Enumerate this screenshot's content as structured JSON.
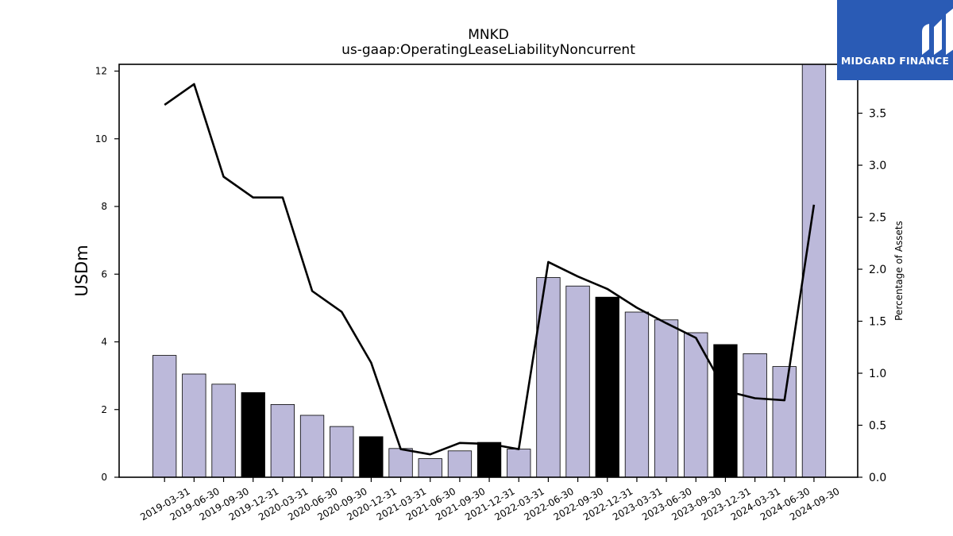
{
  "brand": {
    "name": "MIDGARD FINANCE",
    "color": "#2a5bb5"
  },
  "chart_data": {
    "type": "bar",
    "title": "MNKD",
    "subtitle": "us-gaap:OperatingLeaseLiabilityNoncurrent",
    "ylabel": "USDm",
    "y2label": "Percentage of Assets",
    "ylim": [
      0,
      12.2
    ],
    "y2lim": [
      0,
      3.97
    ],
    "yticks": [
      0,
      2,
      4,
      6,
      8,
      10,
      12
    ],
    "y2ticks": [
      "0.0",
      "0.5",
      "1.0",
      "1.5",
      "2.0",
      "2.5",
      "3.0",
      "3.5"
    ],
    "categories": [
      "2019-03-31",
      "2019-06-30",
      "2019-09-30",
      "2019-12-31",
      "2020-03-31",
      "2020-06-30",
      "2020-09-30",
      "2020-12-31",
      "2021-03-31",
      "2021-06-30",
      "2021-09-30",
      "2021-12-31",
      "2022-03-31",
      "2022-06-30",
      "2022-09-30",
      "2022-12-31",
      "2023-03-31",
      "2023-06-30",
      "2023-09-30",
      "2023-12-31",
      "2024-03-31",
      "2024-06-30",
      "2024-09-30"
    ],
    "series": [
      {
        "type": "bar",
        "axis": "left",
        "values": [
          3.6,
          3.05,
          2.75,
          2.5,
          2.15,
          1.83,
          1.5,
          1.2,
          0.85,
          0.55,
          0.78,
          1.03,
          0.83,
          5.9,
          5.65,
          5.32,
          4.88,
          4.65,
          4.27,
          3.92,
          3.65,
          3.27,
          12.2
        ]
      },
      {
        "type": "line",
        "axis": "right",
        "values": [
          3.58,
          3.78,
          2.89,
          2.69,
          2.69,
          1.79,
          1.59,
          1.1,
          0.27,
          0.22,
          0.33,
          0.32,
          0.27,
          2.07,
          1.93,
          1.81,
          1.63,
          1.48,
          1.34,
          0.83,
          0.76,
          0.74,
          2.62
        ]
      }
    ],
    "bar_colors": {
      "default": "#bcb9da",
      "year_end": "#000000"
    },
    "line_color": "#000000",
    "grid": false,
    "legend": "none"
  }
}
